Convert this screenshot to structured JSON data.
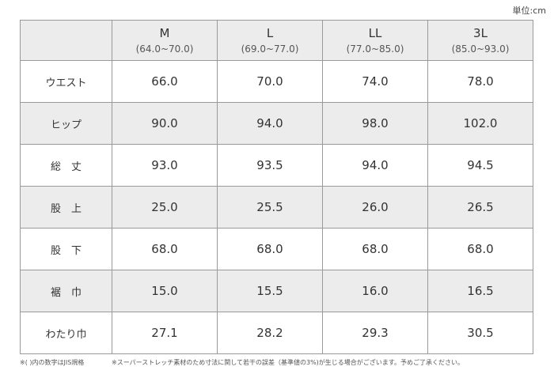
{
  "unit_label": "単位:cm",
  "header": {
    "sizes": [
      {
        "name": "M",
        "range": "(64.0~70.0)"
      },
      {
        "name": "L",
        "range": "(69.0~77.0)"
      },
      {
        "name": "LL",
        "range": "(77.0~85.0)"
      },
      {
        "name": "3L",
        "range": "(85.0~93.0)"
      }
    ]
  },
  "rows": [
    {
      "label": "ウエスト",
      "values": [
        "66.0",
        "70.0",
        "74.0",
        "78.0"
      ]
    },
    {
      "label": "ヒップ",
      "values": [
        "90.0",
        "94.0",
        "98.0",
        "102.0"
      ]
    },
    {
      "label": "総　丈",
      "values": [
        "93.0",
        "93.5",
        "94.0",
        "94.5"
      ]
    },
    {
      "label": "股　上",
      "values": [
        "25.0",
        "25.5",
        "26.0",
        "26.5"
      ]
    },
    {
      "label": "股　下",
      "values": [
        "68.0",
        "68.0",
        "68.0",
        "68.0"
      ]
    },
    {
      "label": "裾　巾",
      "values": [
        "15.0",
        "15.5",
        "16.0",
        "16.5"
      ]
    },
    {
      "label": "わたり巾",
      "values": [
        "27.1",
        "28.2",
        "29.3",
        "30.5"
      ]
    }
  ],
  "notes": {
    "note1": "※( )内の数字はJIS規格",
    "note2": "※スーパーストレッチ素材のため寸法に関して若干の誤差（基準値の3%)が生じる場合がございます。予めご了承ください。"
  }
}
